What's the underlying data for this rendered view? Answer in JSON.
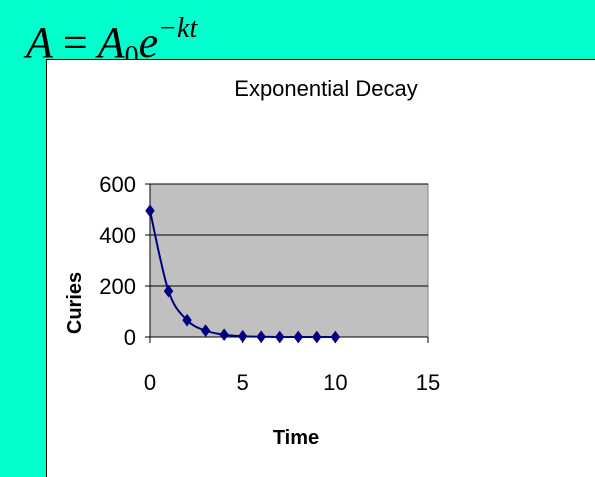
{
  "formula": {
    "base": "A",
    "equals": "=",
    "coef": "A",
    "sub": "0",
    "exp_base": "e",
    "exponent": "−kt"
  },
  "chart_data": {
    "type": "scatter",
    "title": "Exponential Decay",
    "xlabel": "Time",
    "ylabel": "Curies",
    "xlim": [
      0,
      15
    ],
    "ylim": [
      0,
      600
    ],
    "xticks": [
      0,
      5,
      10,
      15
    ],
    "yticks": [
      0,
      200,
      400,
      600
    ],
    "grid": true,
    "smooth_line": true,
    "colors": {
      "plot_bg": "#C0C0C0",
      "series": "#000080"
    },
    "series": [
      {
        "x": [
          0,
          1,
          2,
          3,
          4,
          5,
          6,
          7,
          8,
          9,
          10
        ],
        "values": [
          495,
          180,
          66,
          25,
          9,
          3,
          1,
          0,
          0,
          0,
          0
        ]
      }
    ]
  }
}
